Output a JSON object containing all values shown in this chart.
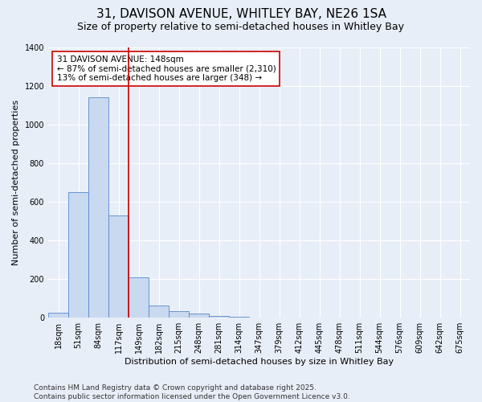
{
  "title_line1": "31, DAVISON AVENUE, WHITLEY BAY, NE26 1SA",
  "title_line2": "Size of property relative to semi-detached houses in Whitley Bay",
  "xlabel": "Distribution of semi-detached houses by size in Whitley Bay",
  "ylabel": "Number of semi-detached properties",
  "bins": [
    "18sqm",
    "51sqm",
    "84sqm",
    "117sqm",
    "149sqm",
    "182sqm",
    "215sqm",
    "248sqm",
    "281sqm",
    "314sqm",
    "347sqm",
    "379sqm",
    "412sqm",
    "445sqm",
    "478sqm",
    "511sqm",
    "544sqm",
    "576sqm",
    "609sqm",
    "642sqm",
    "675sqm"
  ],
  "values": [
    25,
    650,
    1140,
    530,
    210,
    65,
    35,
    20,
    10,
    5,
    0,
    0,
    0,
    0,
    0,
    0,
    0,
    0,
    0,
    0,
    0
  ],
  "bar_color": "#c9d9f0",
  "bar_edge_color": "#5588cc",
  "bar_edge_width": 0.6,
  "vline_color": "#cc0000",
  "annotation_text": "31 DAVISON AVENUE: 148sqm\n← 87% of semi-detached houses are smaller (2,310)\n13% of semi-detached houses are larger (348) →",
  "annotation_box_color": "white",
  "annotation_box_edge_color": "#cc0000",
  "ylim": [
    0,
    1400
  ],
  "yticks": [
    0,
    200,
    400,
    600,
    800,
    1000,
    1200,
    1400
  ],
  "background_color": "#e8eef8",
  "grid_color": "white",
  "footer_text": "Contains HM Land Registry data © Crown copyright and database right 2025.\nContains public sector information licensed under the Open Government Licence v3.0.",
  "title_fontsize": 11,
  "subtitle_fontsize": 9,
  "annotation_fontsize": 7.5,
  "tick_fontsize": 7,
  "axis_label_fontsize": 8,
  "footer_fontsize": 6.5
}
